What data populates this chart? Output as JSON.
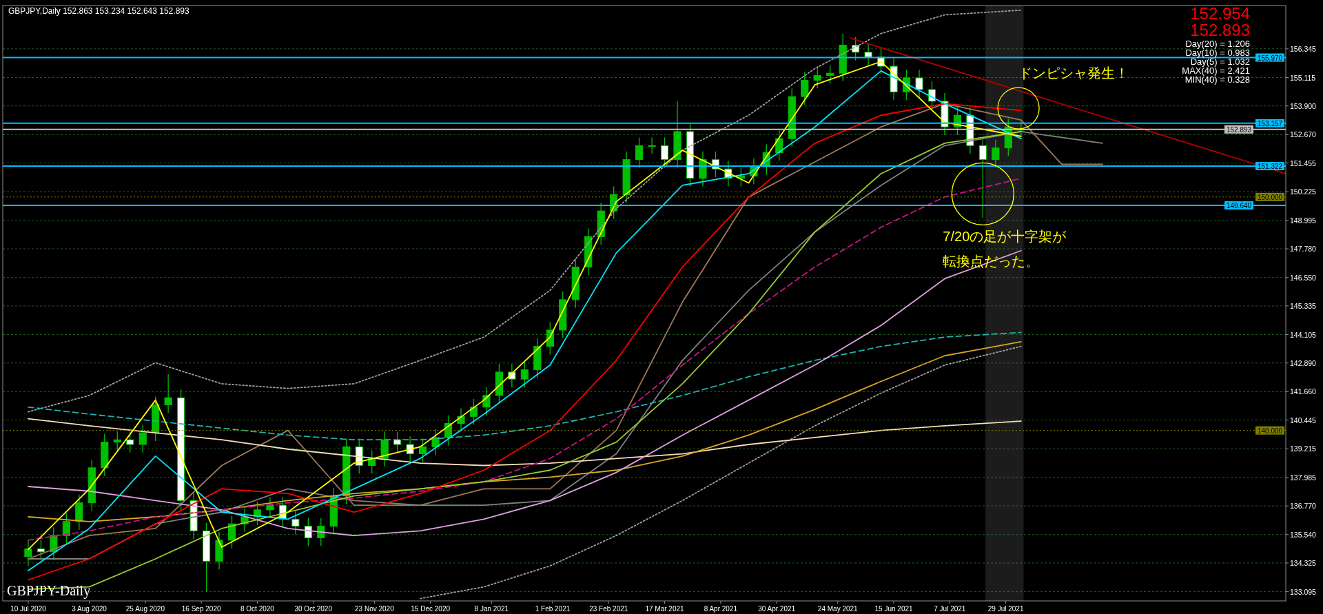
{
  "chart_data": {
    "type": "candlestick",
    "title": "GBPJPY,Daily  152.863 153.234 152.643 152.893",
    "x": [
      "2020-07-10",
      "2020-07-15",
      "2020-07-20",
      "2020-07-25",
      "2020-07-30",
      "2020-08-04",
      "2020-08-09",
      "2020-08-14",
      "2020-08-19",
      "2020-08-24",
      "2020-08-29",
      "2020-09-03",
      "2020-09-08",
      "2020-09-13",
      "2020-09-18",
      "2020-09-23",
      "2020-09-28",
      "2020-10-03",
      "2020-10-08",
      "2020-10-13",
      "2020-10-18",
      "2020-10-23",
      "2020-10-28",
      "2020-11-02",
      "2020-11-07",
      "2020-11-12",
      "2020-11-17",
      "2020-11-22",
      "2020-11-27",
      "2020-12-02",
      "2020-12-07",
      "2020-12-12",
      "2020-12-17",
      "2020-12-22",
      "2020-12-27",
      "2021-01-01",
      "2021-01-06",
      "2021-01-11",
      "2021-01-16",
      "2021-01-21",
      "2021-01-26",
      "2021-01-31",
      "2021-02-05",
      "2021-02-10",
      "2021-02-15",
      "2021-02-20",
      "2021-02-25",
      "2021-03-02",
      "2021-03-07",
      "2021-03-12",
      "2021-03-17",
      "2021-03-22",
      "2021-03-27",
      "2021-04-01",
      "2021-04-06",
      "2021-04-11",
      "2021-04-16",
      "2021-04-21",
      "2021-04-26",
      "2021-05-01",
      "2021-05-06",
      "2021-05-11",
      "2021-05-16",
      "2021-05-21",
      "2021-05-26",
      "2021-05-31",
      "2021-06-05",
      "2021-06-10",
      "2021-06-15",
      "2021-06-20",
      "2021-06-25",
      "2021-06-30",
      "2021-07-05",
      "2021-07-10",
      "2021-07-15",
      "2021-07-20",
      "2021-07-25",
      "2021-07-30",
      "2021-08-04"
    ],
    "ohlc": [
      [
        134.6,
        135.3,
        134.2,
        134.93
      ],
      [
        134.93,
        135.3,
        134.45,
        134.8
      ],
      [
        134.8,
        135.85,
        134.45,
        135.5
      ],
      [
        135.5,
        136.45,
        135.15,
        136.1
      ],
      [
        136.1,
        137.25,
        135.75,
        136.9
      ],
      [
        136.9,
        138.75,
        136.55,
        138.4
      ],
      [
        138.4,
        139.85,
        138.05,
        139.5
      ],
      [
        139.5,
        139.95,
        139.15,
        139.6
      ],
      [
        139.6,
        139.95,
        139.05,
        139.4
      ],
      [
        139.4,
        140.25,
        139.05,
        139.9
      ],
      [
        139.9,
        141.45,
        139.55,
        141.1
      ],
      [
        141.1,
        142.4,
        140.75,
        141.4
      ],
      [
        141.4,
        141.75,
        136.6,
        137.0
      ],
      [
        137.0,
        137.35,
        135.35,
        135.7
      ],
      [
        135.7,
        136.05,
        133.1,
        134.4
      ],
      [
        134.4,
        135.65,
        134.05,
        135.3
      ],
      [
        135.3,
        136.35,
        134.95,
        136.0
      ],
      [
        136.0,
        136.65,
        135.65,
        136.3
      ],
      [
        136.3,
        136.95,
        135.95,
        136.6
      ],
      [
        136.6,
        137.15,
        136.25,
        136.8
      ],
      [
        136.8,
        137.15,
        135.85,
        136.2
      ],
      [
        136.2,
        136.55,
        135.55,
        135.9
      ],
      [
        135.9,
        136.25,
        135.05,
        135.4
      ],
      [
        135.4,
        136.25,
        135.05,
        135.9
      ],
      [
        135.9,
        137.55,
        135.55,
        137.2
      ],
      [
        137.2,
        139.65,
        136.85,
        139.3
      ],
      [
        139.3,
        139.65,
        138.15,
        138.5
      ],
      [
        138.5,
        139.15,
        138.15,
        138.8
      ],
      [
        138.8,
        139.95,
        138.45,
        139.6
      ],
      [
        139.6,
        139.95,
        139.05,
        139.4
      ],
      [
        139.4,
        139.75,
        138.65,
        139.0
      ],
      [
        139.0,
        139.65,
        138.65,
        139.3
      ],
      [
        139.3,
        140.05,
        138.95,
        139.7
      ],
      [
        139.7,
        140.65,
        139.35,
        140.3
      ],
      [
        140.3,
        140.95,
        139.95,
        140.6
      ],
      [
        140.6,
        141.35,
        140.25,
        141.0
      ],
      [
        141.0,
        141.85,
        140.65,
        141.5
      ],
      [
        141.5,
        142.85,
        141.15,
        142.5
      ],
      [
        142.5,
        142.85,
        141.85,
        142.2
      ],
      [
        142.2,
        142.95,
        141.85,
        142.6
      ],
      [
        142.6,
        143.95,
        142.25,
        143.6
      ],
      [
        143.6,
        144.65,
        143.25,
        144.3
      ],
      [
        144.3,
        145.95,
        143.95,
        145.6
      ],
      [
        145.6,
        147.35,
        145.25,
        147.0
      ],
      [
        147.0,
        148.65,
        146.65,
        148.3
      ],
      [
        148.3,
        149.75,
        147.95,
        149.4
      ],
      [
        149.4,
        150.45,
        149.05,
        150.1
      ],
      [
        150.1,
        151.95,
        149.75,
        151.6
      ],
      [
        151.6,
        152.55,
        151.25,
        152.2
      ],
      [
        152.2,
        152.55,
        151.85,
        152.2
      ],
      [
        152.2,
        152.55,
        151.25,
        151.6
      ],
      [
        151.6,
        154.1,
        151.25,
        152.8
      ],
      [
        152.8,
        153.15,
        150.45,
        150.8
      ],
      [
        150.8,
        151.95,
        150.45,
        151.6
      ],
      [
        151.6,
        151.95,
        150.85,
        151.2
      ],
      [
        151.2,
        151.55,
        150.45,
        150.8
      ],
      [
        150.8,
        151.25,
        150.45,
        150.9
      ],
      [
        150.9,
        151.65,
        150.55,
        151.3
      ],
      [
        151.3,
        152.25,
        150.95,
        151.9
      ],
      [
        151.9,
        152.85,
        151.55,
        152.5
      ],
      [
        152.5,
        154.65,
        152.15,
        154.3
      ],
      [
        154.3,
        155.35,
        153.95,
        155.0
      ],
      [
        155.0,
        155.55,
        154.65,
        155.2
      ],
      [
        155.2,
        155.65,
        154.85,
        155.3
      ],
      [
        155.3,
        157.0,
        154.95,
        156.5
      ],
      [
        156.5,
        156.85,
        155.85,
        156.2
      ],
      [
        156.2,
        156.55,
        155.65,
        156.0
      ],
      [
        156.0,
        156.35,
        155.25,
        155.6
      ],
      [
        155.6,
        155.95,
        154.15,
        154.5
      ],
      [
        154.5,
        155.45,
        154.15,
        155.1
      ],
      [
        155.1,
        155.45,
        154.25,
        154.6
      ],
      [
        154.6,
        154.95,
        153.75,
        154.1
      ],
      [
        154.1,
        154.45,
        152.65,
        153.0
      ],
      [
        153.0,
        153.85,
        152.65,
        153.5
      ],
      [
        153.5,
        153.85,
        151.85,
        152.2
      ],
      [
        152.2,
        152.55,
        149.1,
        151.6
      ],
      [
        151.6,
        152.45,
        151.25,
        152.1
      ],
      [
        152.1,
        153.35,
        151.75,
        153.0
      ],
      [
        152.863,
        153.234,
        152.643,
        152.893
      ]
    ],
    "colors": [
      "#00c000",
      "#ffffff",
      "#00c000",
      "#00c000",
      "#00c000",
      "#00c000",
      "#00c000",
      "#00c000",
      "#ffffff",
      "#00c000",
      "#00c000",
      "#00c000",
      "#ffffff",
      "#ffffff",
      "#ffffff",
      "#00c000",
      "#00c000",
      "#00c000",
      "#00c000",
      "#00c000",
      "#ffffff",
      "#ffffff",
      "#ffffff",
      "#00c000",
      "#00c000",
      "#00c000",
      "#ffffff",
      "#00c000",
      "#00c000",
      "#ffffff",
      "#ffffff",
      "#00c000",
      "#00c000",
      "#00c000",
      "#00c000",
      "#00c000",
      "#00c000",
      "#00c000",
      "#ffffff",
      "#00c000",
      "#00c000",
      "#00c000",
      "#00c000",
      "#00c000",
      "#00c000",
      "#00c000",
      "#00c000",
      "#00c000",
      "#00c000",
      "#ffffff",
      "#ffffff",
      "#00c000",
      "#ffffff",
      "#00c000",
      "#ffffff",
      "#ffffff",
      "#00c000",
      "#00c000",
      "#00c000",
      "#00c000",
      "#00c000",
      "#00c000",
      "#00c000",
      "#00c000",
      "#00c000",
      "#ffffff",
      "#ffffff",
      "#ffffff",
      "#ffffff",
      "#00c000",
      "#ffffff",
      "#ffffff",
      "#ffffff",
      "#00c000",
      "#ffffff",
      "#ffffff",
      "#00c000",
      "#00c000",
      "#00c000"
    ],
    "series": [
      {
        "type": "line",
        "color": "#a0a0a0",
        "line_style": "dotted",
        "x": [
          "2020-07-10",
          "2020-08-03",
          "2020-08-29",
          "2020-09-24",
          "2020-10-20",
          "2020-11-15",
          "2020-12-11",
          "2021-01-05",
          "2021-01-31",
          "2021-02-26",
          "2021-03-24",
          "2021-04-19",
          "2021-05-15",
          "2021-06-10",
          "2021-07-05",
          "2021-08-04"
        ],
        "values": [
          140.8,
          141.5,
          142.9,
          142.0,
          141.8,
          142.0,
          143.0,
          144.0,
          146.0,
          149.5,
          152.0,
          153.5,
          155.5,
          157.0,
          157.8,
          158.0
        ]
      },
      {
        "type": "line",
        "color": "#a0a0a0",
        "line_style": "dotted",
        "x": [
          "2020-12-11",
          "2021-01-05",
          "2021-01-31",
          "2021-02-26",
          "2021-03-24",
          "2021-04-19",
          "2021-05-15",
          "2021-06-10",
          "2021-07-05",
          "2021-08-04"
        ],
        "values": [
          132.8,
          133.3,
          134.2,
          135.5,
          137.0,
          138.6,
          140.2,
          141.6,
          142.8,
          143.6
        ]
      },
      {
        "type": "line",
        "color": "#a0785a",
        "line_style": "solid",
        "x": [
          "2020-07-10",
          "2020-08-03",
          "2020-08-29",
          "2020-09-24",
          "2020-10-20",
          "2020-11-15",
          "2020-12-11",
          "2021-01-05",
          "2021-01-31",
          "2021-02-26",
          "2021-03-24",
          "2021-04-19",
          "2021-05-15",
          "2021-06-10",
          "2021-07-05",
          "2021-08-04",
          "2021-08-20",
          "2021-09-05"
        ],
        "values": [
          134.5,
          135.5,
          135.8,
          138.5,
          140.0,
          136.8,
          136.8,
          137.5,
          137.5,
          140.0,
          145.5,
          150.0,
          151.5,
          153.0,
          154.0,
          153.3,
          151.4,
          151.4
        ]
      },
      {
        "type": "line",
        "color": "#808080",
        "line_style": "solid",
        "x": [
          "2020-07-10",
          "2020-08-03",
          "2020-08-29",
          "2020-09-24",
          "2020-10-20",
          "2020-11-15",
          "2020-12-11",
          "2021-01-05",
          "2021-01-31",
          "2021-02-26",
          "2021-03-24",
          "2021-04-19",
          "2021-05-15",
          "2021-06-10",
          "2021-07-05",
          "2021-08-04",
          "2021-09-05"
        ],
        "values": [
          134.5,
          134.5,
          136.0,
          136.5,
          137.5,
          137.0,
          136.8,
          136.8,
          137.0,
          139.0,
          143.0,
          146.0,
          148.5,
          150.5,
          152.2,
          152.8,
          152.3
        ]
      },
      {
        "type": "line",
        "color": "#f5deb3",
        "line_style": "solid",
        "x": [
          "2020-07-10",
          "2020-08-03",
          "2020-08-29",
          "2020-09-24",
          "2020-10-20",
          "2020-11-15",
          "2020-12-11",
          "2021-01-05",
          "2021-01-31",
          "2021-02-26",
          "2021-03-24",
          "2021-04-19",
          "2021-05-15",
          "2021-06-10",
          "2021-07-05",
          "2021-08-04"
        ],
        "values": [
          140.5,
          140.2,
          139.9,
          139.6,
          139.2,
          138.9,
          138.6,
          138.5,
          138.6,
          138.8,
          139.0,
          139.4,
          139.7,
          140.0,
          140.2,
          140.4
        ]
      },
      {
        "type": "line",
        "color": "#20b2aa",
        "line_style": "dashed",
        "x": [
          "2020-07-10",
          "2020-08-03",
          "2020-08-29",
          "2020-09-24",
          "2020-10-20",
          "2020-11-15",
          "2020-12-11",
          "2021-01-05",
          "2021-01-31",
          "2021-02-26",
          "2021-03-24",
          "2021-04-19",
          "2021-05-15",
          "2021-06-10",
          "2021-07-05",
          "2021-08-04"
        ],
        "values": [
          141.0,
          140.7,
          140.4,
          140.1,
          139.8,
          139.6,
          139.6,
          139.8,
          140.2,
          140.8,
          141.5,
          142.3,
          143.0,
          143.6,
          144.0,
          144.2
        ]
      },
      {
        "type": "line",
        "color": "#daa520",
        "line_style": "solid",
        "x": [
          "2020-07-10",
          "2020-08-03",
          "2020-08-29",
          "2020-09-24",
          "2020-10-20",
          "2020-11-15",
          "2020-12-11",
          "2021-01-05",
          "2021-01-31",
          "2021-02-26",
          "2021-03-24",
          "2021-04-19",
          "2021-05-15",
          "2021-06-10",
          "2021-07-05",
          "2021-08-04"
        ],
        "values": [
          136.3,
          136.1,
          136.3,
          136.6,
          137.0,
          137.3,
          137.5,
          137.8,
          138.0,
          138.3,
          138.9,
          139.8,
          140.9,
          142.1,
          143.2,
          143.8
        ]
      },
      {
        "type": "line",
        "color": "#dda0dd",
        "line_style": "solid",
        "x": [
          "2020-07-10",
          "2020-08-03",
          "2020-08-29",
          "2020-09-24",
          "2020-10-20",
          "2020-11-15",
          "2020-12-11",
          "2021-01-05",
          "2021-01-31",
          "2021-02-26",
          "2021-03-24",
          "2021-04-19",
          "2021-05-15",
          "2021-06-10",
          "2021-07-05",
          "2021-08-04"
        ],
        "values": [
          137.6,
          137.4,
          137.0,
          136.6,
          135.8,
          135.5,
          135.7,
          136.2,
          137.0,
          138.2,
          139.8,
          141.3,
          142.8,
          144.5,
          146.5,
          147.7
        ]
      },
      {
        "type": "line",
        "color": "#c71585",
        "line_style": "dashed",
        "x": [
          "2020-07-10",
          "2020-08-03",
          "2020-08-29",
          "2020-09-24",
          "2020-10-20",
          "2020-11-15",
          "2020-12-11",
          "2021-01-05",
          "2021-01-31",
          "2021-02-26",
          "2021-03-24",
          "2021-04-19",
          "2021-05-15",
          "2021-06-10",
          "2021-07-05",
          "2021-08-04"
        ],
        "values": [
          135.3,
          135.7,
          136.3,
          136.6,
          136.9,
          137.1,
          137.4,
          137.8,
          138.8,
          140.5,
          142.8,
          145.0,
          147.0,
          148.7,
          150.0,
          150.8
        ]
      },
      {
        "type": "line",
        "color": "#9acd32",
        "line_style": "solid",
        "x": [
          "2020-07-10",
          "2020-08-03",
          "2020-08-29",
          "2020-09-24",
          "2020-10-20",
          "2020-11-15",
          "2020-12-11",
          "2021-01-05",
          "2021-01-31",
          "2021-02-26",
          "2021-03-24",
          "2021-04-19",
          "2021-05-15",
          "2021-06-10",
          "2021-07-05",
          "2021-08-04"
        ],
        "values": [
          133.2,
          133.3,
          134.5,
          135.8,
          136.5,
          137.2,
          137.5,
          137.8,
          138.3,
          139.5,
          142.0,
          145.0,
          148.5,
          151.0,
          152.3,
          152.8
        ]
      },
      {
        "type": "line",
        "color": "#ff0000",
        "line_style": "solid",
        "x": [
          "2020-07-10",
          "2020-08-03",
          "2020-08-29",
          "2020-09-24",
          "2020-10-20",
          "2020-11-15",
          "2020-12-11",
          "2021-01-05",
          "2021-01-31",
          "2021-02-26",
          "2021-03-24",
          "2021-04-19",
          "2021-05-15",
          "2021-06-10",
          "2021-07-05",
          "2021-08-04"
        ],
        "values": [
          133.6,
          134.5,
          136.0,
          137.5,
          137.3,
          136.5,
          137.3,
          138.3,
          140.0,
          143.0,
          147.0,
          150.0,
          152.3,
          153.5,
          154.0,
          153.7
        ]
      },
      {
        "type": "line",
        "color": "#00e5ff",
        "line_style": "solid",
        "x": [
          "2020-07-10",
          "2020-08-03",
          "2020-08-29",
          "2020-09-24",
          "2020-10-20",
          "2020-11-15",
          "2020-12-11",
          "2021-01-05",
          "2021-01-31",
          "2021-02-26",
          "2021-03-24",
          "2021-04-19",
          "2021-05-15",
          "2021-06-10",
          "2021-07-05",
          "2021-08-04"
        ],
        "values": [
          134.0,
          135.8,
          138.9,
          136.5,
          136.2,
          137.5,
          138.8,
          140.7,
          142.8,
          147.6,
          150.5,
          151.0,
          153.0,
          155.4,
          154.0,
          152.5
        ]
      },
      {
        "type": "line",
        "color": "#ffff00",
        "line_style": "solid",
        "x": [
          "2020-07-10",
          "2020-08-03",
          "2020-08-29",
          "2020-09-24",
          "2020-10-20",
          "2020-11-15",
          "2020-12-11",
          "2021-01-05",
          "2021-01-31",
          "2021-02-26",
          "2021-03-24",
          "2021-04-19",
          "2021-05-15",
          "2021-06-10",
          "2021-07-05",
          "2021-08-04"
        ],
        "values": [
          134.9,
          137.5,
          141.3,
          135.0,
          136.5,
          138.6,
          139.3,
          141.3,
          144.0,
          149.8,
          152.0,
          150.6,
          154.8,
          155.8,
          153.2,
          152.6
        ]
      },
      {
        "type": "line",
        "color": "#b00000",
        "line_style": "solid",
        "x": [
          "2021-05-29",
          "2021-11-16"
        ],
        "values": [
          156.8,
          151.0
        ]
      }
    ],
    "xlim": [
      "2020-06-30",
      "2021-11-16"
    ],
    "xticks": [
      {
        "value": "2020-07-10",
        "label": "10 Jul 2020"
      },
      {
        "value": "2020-08-03",
        "label": "3 Aug 2020"
      },
      {
        "value": "2020-08-25",
        "label": "25 Aug 2020"
      },
      {
        "value": "2020-09-16",
        "label": "16 Sep 2020"
      },
      {
        "value": "2020-10-08",
        "label": "8 Oct 2020"
      },
      {
        "value": "2020-10-30",
        "label": "30 Oct 2020"
      },
      {
        "value": "2020-11-23",
        "label": "23 Nov 2020"
      },
      {
        "value": "2020-12-15",
        "label": "15 Dec 2020"
      },
      {
        "value": "2021-01-08",
        "label": "8 Jan 2021"
      },
      {
        "value": "2021-02-01",
        "label": "1 Feb 2021"
      },
      {
        "value": "2021-02-23",
        "label": "23 Feb 2021"
      },
      {
        "value": "2021-03-17",
        "label": "17 Mar 2021"
      },
      {
        "value": "2021-04-08",
        "label": "8 Apr 2021"
      },
      {
        "value": "2021-04-30",
        "label": "30 Apr 2021"
      },
      {
        "value": "2021-05-24",
        "label": "24 May 2021"
      },
      {
        "value": "2021-06-15",
        "label": "15 Jun 2021"
      },
      {
        "value": "2021-07-07",
        "label": "7 Jul 2021"
      },
      {
        "value": "2021-07-29",
        "label": "29 Jul 2021"
      }
    ],
    "ylim": [
      132.7,
      158.2
    ],
    "yticks": [
      133.095,
      134.325,
      {
        "value": 135.54,
        "label": "135.540"
      },
      {
        "value": 136.77,
        "label": "136.770"
      },
      137.985,
      139.215,
      140.445,
      {
        "value": 141.66,
        "label": "141.660"
      },
      {
        "value": 142.89,
        "label": "142.890"
      },
      144.105,
      145.335,
      {
        "value": 146.55,
        "label": "146.550"
      },
      {
        "value": 147.78,
        "label": "147.780"
      },
      148.995,
      150.225,
      151.455,
      {
        "value": 152.67,
        "label": "152.670"
      },
      {
        "value": 153.9,
        "label": "153.900"
      },
      155.115,
      156.345
    ],
    "grid": "y",
    "bands": [
      {
        "axis": "x",
        "from": "2021-07-21",
        "to": "2021-08-05",
        "color": "#808080"
      }
    ],
    "ref_lines": [
      {
        "axis": "y",
        "value": 155.97,
        "label": "155.970",
        "color": "#00bfff",
        "line_style": "solid"
      },
      {
        "axis": "y",
        "value": 153.157,
        "label": "153.157",
        "color": "#00bfff",
        "line_style": "solid"
      },
      {
        "axis": "y",
        "value": 152.893,
        "label": "152.893",
        "color": "#c0c0c0",
        "line_style": "solid"
      },
      {
        "axis": "y",
        "value": 151.322,
        "label": "151.322",
        "color": "#00bfff",
        "line_style": "solid"
      },
      {
        "axis": "y",
        "value": 150.0,
        "label": "150.000",
        "color": "#808000",
        "line_style": "dotted"
      },
      {
        "axis": "y",
        "value": 149.64,
        "label": "149.640",
        "color": "#00bfff",
        "line_style": "solid"
      },
      {
        "axis": "y",
        "value": 140.0,
        "label": "140.000",
        "color": "#808000",
        "line_style": "dotted"
      }
    ],
    "annotations": [
      "GBPJPY-Daily",
      "152.954",
      "152.893",
      "Day(20) = 1.206",
      "Day(10) = 0.983",
      "Day(5) = 1.032",
      "MAX(40) = 2.421",
      "MIN(40) = 0.328",
      {
        "text": "ドンピシャ発生！",
        "x": "2021-08-03",
        "y": 153.8
      },
      {
        "text": "7/20の足が十字架が",
        "x": "2021-07-20",
        "y": 149.1
      },
      "転換点だった。"
    ]
  }
}
